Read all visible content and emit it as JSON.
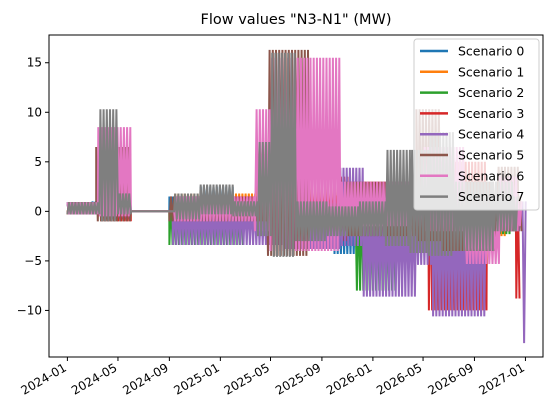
{
  "chart_data": {
    "type": "line",
    "title": "Flow values \"N3-N1\" (MW)",
    "xlabel": "",
    "ylabel": "",
    "x_type": "date",
    "xlim": [
      "2023-11-18",
      "2027-02-12"
    ],
    "ylim": [
      -14.7,
      17.8
    ],
    "x_tick_labels": [
      "2024-01",
      "2024-05",
      "2024-09",
      "2025-01",
      "2025-05",
      "2025-09",
      "2026-01",
      "2026-05",
      "2026-09",
      "2027-01"
    ],
    "x_ticks": [
      "2024-01-01",
      "2024-05-01",
      "2024-09-01",
      "2025-01-01",
      "2025-05-01",
      "2025-09-01",
      "2026-01-01",
      "2026-05-01",
      "2026-09-01",
      "2027-01-01"
    ],
    "y_ticks": [
      -10,
      -5,
      0,
      5,
      10,
      15
    ],
    "y_tick_labels": [
      "−10",
      "−5",
      "0",
      "5",
      "10",
      "15"
    ],
    "grid": false,
    "legend_position": "top-right",
    "series": [
      {
        "name": "Scenario 0",
        "color": "#1f77b4",
        "points": [
          {
            "x": "2024-01-01",
            "lo": -0.3,
            "hi": 0.9
          },
          {
            "x": "2024-03-01",
            "lo": -0.2,
            "hi": 1.0
          },
          {
            "x": "2024-04-01",
            "lo": -0.8,
            "hi": 2.5
          },
          {
            "x": "2024-06-01",
            "lo": 0.0,
            "hi": 0.0
          },
          {
            "x": "2024-09-01",
            "lo": -1.5,
            "hi": 1.5
          },
          {
            "x": "2024-11-15",
            "lo": -0.3,
            "hi": 2.5
          },
          {
            "x": "2025-02-01",
            "lo": -0.5,
            "hi": 1.0
          },
          {
            "x": "2025-04-01",
            "lo": -1.0,
            "hi": 4.0
          },
          {
            "x": "2025-06-01",
            "lo": -3.5,
            "hi": 1.0
          },
          {
            "x": "2025-10-01",
            "lo": -4.3,
            "hi": 1.2
          },
          {
            "x": "2026-01-01",
            "lo": -2.0,
            "hi": 2.0
          },
          {
            "x": "2026-06-01",
            "lo": -4.0,
            "hi": 2.5
          },
          {
            "x": "2026-10-01",
            "lo": -2.0,
            "hi": 1.5
          },
          {
            "x": "2026-12-15",
            "lo": -1.5,
            "hi": 1.0
          }
        ]
      },
      {
        "name": "Scenario 1",
        "color": "#ff7f0e",
        "points": [
          {
            "x": "2024-01-01",
            "lo": -0.3,
            "hi": 0.9
          },
          {
            "x": "2024-03-15",
            "lo": -0.5,
            "hi": 3.0
          },
          {
            "x": "2024-06-01",
            "lo": 0.0,
            "hi": 0.0
          },
          {
            "x": "2024-09-15",
            "lo": -1.0,
            "hi": 1.8
          },
          {
            "x": "2025-04-01",
            "lo": -0.8,
            "hi": 5.8
          },
          {
            "x": "2025-06-15",
            "lo": -3.0,
            "hi": 1.2
          },
          {
            "x": "2025-10-01",
            "lo": -2.0,
            "hi": 1.6
          },
          {
            "x": "2026-02-01",
            "lo": -2.0,
            "hi": 1.5
          },
          {
            "x": "2026-08-01",
            "lo": -2.5,
            "hi": 1.0
          },
          {
            "x": "2026-11-15",
            "lo": -1.0,
            "hi": 2.0
          }
        ]
      },
      {
        "name": "Scenario 2",
        "color": "#2ca02c",
        "points": [
          {
            "x": "2024-01-01",
            "lo": -0.3,
            "hi": 0.9
          },
          {
            "x": "2024-06-01",
            "lo": 0.0,
            "hi": 0.0
          },
          {
            "x": "2024-09-01",
            "lo": -3.4,
            "hi": 1.2
          },
          {
            "x": "2025-03-01",
            "lo": -1.0,
            "hi": 1.0
          },
          {
            "x": "2025-11-20",
            "lo": -8.0,
            "hi": 1.5
          },
          {
            "x": "2026-03-01",
            "lo": -2.5,
            "hi": 1.5
          },
          {
            "x": "2026-08-01",
            "lo": -2.3,
            "hi": 1.0
          },
          {
            "x": "2026-12-01",
            "lo": -1.5,
            "hi": 2.0
          }
        ]
      },
      {
        "name": "Scenario 3",
        "color": "#d62728",
        "points": [
          {
            "x": "2024-01-01",
            "lo": -0.3,
            "hi": 0.9
          },
          {
            "x": "2024-03-20",
            "lo": -1.0,
            "hi": 5.0
          },
          {
            "x": "2024-06-01",
            "lo": 0.0,
            "hi": 0.0
          },
          {
            "x": "2024-09-15",
            "lo": -1.5,
            "hi": 1.5
          },
          {
            "x": "2025-05-01",
            "lo": -3.0,
            "hi": 3.5
          },
          {
            "x": "2025-11-01",
            "lo": -2.0,
            "hi": 3.0
          },
          {
            "x": "2026-04-01",
            "lo": -2.5,
            "hi": 3.0
          },
          {
            "x": "2026-05-15",
            "lo": -10.0,
            "hi": 5.0
          },
          {
            "x": "2026-10-01",
            "lo": -2.0,
            "hi": 1.5
          },
          {
            "x": "2026-12-10",
            "lo": -8.8,
            "hi": 1.5
          }
        ]
      },
      {
        "name": "Scenario 4",
        "color": "#9467bd",
        "points": [
          {
            "x": "2024-01-01",
            "lo": -0.3,
            "hi": 0.9
          },
          {
            "x": "2024-04-01",
            "lo": -0.7,
            "hi": 1.5
          },
          {
            "x": "2024-06-01",
            "lo": 0.0,
            "hi": 0.0
          },
          {
            "x": "2024-09-10",
            "lo": -3.4,
            "hi": 1.0
          },
          {
            "x": "2025-06-01",
            "lo": -3.8,
            "hi": 1.0
          },
          {
            "x": "2025-10-15",
            "lo": -3.5,
            "hi": 4.4
          },
          {
            "x": "2025-12-10",
            "lo": -8.6,
            "hi": 1.0
          },
          {
            "x": "2026-04-15",
            "lo": -5.4,
            "hi": 1.5
          },
          {
            "x": "2026-05-25",
            "lo": -10.6,
            "hi": 2.0
          },
          {
            "x": "2026-10-01",
            "lo": -2.0,
            "hi": 1.0
          },
          {
            "x": "2026-12-25",
            "lo": -13.3,
            "hi": 1.0
          }
        ]
      },
      {
        "name": "Scenario 5",
        "color": "#8c564b",
        "points": [
          {
            "x": "2024-01-01",
            "lo": -0.3,
            "hi": 0.9
          },
          {
            "x": "2024-03-10",
            "lo": -1.0,
            "hi": 6.5
          },
          {
            "x": "2024-06-01",
            "lo": 0.0,
            "hi": 0.0
          },
          {
            "x": "2024-09-01",
            "lo": -1.0,
            "hi": 1.5
          },
          {
            "x": "2025-04-25",
            "lo": -4.5,
            "hi": 16.3
          },
          {
            "x": "2025-08-01",
            "lo": -2.0,
            "hi": 0.8
          },
          {
            "x": "2025-11-01",
            "lo": -2.5,
            "hi": 3.0
          },
          {
            "x": "2026-04-15",
            "lo": -3.0,
            "hi": 10.3
          },
          {
            "x": "2026-06-15",
            "lo": -4.0,
            "hi": 3.0
          },
          {
            "x": "2026-10-25",
            "lo": -2.0,
            "hi": 4.5
          },
          {
            "x": "2026-12-15",
            "lo": -2.0,
            "hi": 1.5
          }
        ]
      },
      {
        "name": "Scenario 6",
        "color": "#e377c2",
        "points": [
          {
            "x": "2024-01-01",
            "lo": -0.3,
            "hi": 0.9
          },
          {
            "x": "2024-03-15",
            "lo": -0.5,
            "hi": 8.5
          },
          {
            "x": "2024-06-01",
            "lo": 0.0,
            "hi": 0.0
          },
          {
            "x": "2024-09-15",
            "lo": -1.0,
            "hi": 1.5
          },
          {
            "x": "2025-03-25",
            "lo": -2.0,
            "hi": 10.3
          },
          {
            "x": "2025-05-01",
            "lo": -4.0,
            "hi": 15.5
          },
          {
            "x": "2025-10-15",
            "lo": -1.5,
            "hi": 3.0
          },
          {
            "x": "2026-05-01",
            "lo": -2.0,
            "hi": 6.5
          },
          {
            "x": "2026-08-10",
            "lo": -5.3,
            "hi": -1.0
          },
          {
            "x": "2026-11-01",
            "lo": -2.0,
            "hi": 3.5
          },
          {
            "x": "2026-12-15",
            "lo": -1.5,
            "hi": 1.0
          }
        ]
      },
      {
        "name": "Scenario 7",
        "color": "#7f7f7f",
        "points": [
          {
            "x": "2024-01-01",
            "lo": -0.3,
            "hi": 0.9
          },
          {
            "x": "2024-03-20",
            "lo": -1.0,
            "hi": 10.3
          },
          {
            "x": "2024-05-01",
            "lo": -0.3,
            "hi": 1.8
          },
          {
            "x": "2024-06-01",
            "lo": 0.0,
            "hi": 0.0
          },
          {
            "x": "2024-09-15",
            "lo": -0.8,
            "hi": 1.8
          },
          {
            "x": "2024-11-15",
            "lo": -0.3,
            "hi": 2.7
          },
          {
            "x": "2025-02-01",
            "lo": -0.5,
            "hi": 1.0
          },
          {
            "x": "2025-04-01",
            "lo": -2.5,
            "hi": 7.0
          },
          {
            "x": "2025-05-05",
            "lo": -4.6,
            "hi": 16.0
          },
          {
            "x": "2025-07-01",
            "lo": -3.0,
            "hi": 1.0
          },
          {
            "x": "2025-09-15",
            "lo": -2.5,
            "hi": 0.5
          },
          {
            "x": "2025-12-01",
            "lo": -2.5,
            "hi": 1.0
          },
          {
            "x": "2026-02-01",
            "lo": -3.5,
            "hi": 6.2
          },
          {
            "x": "2026-04-01",
            "lo": -4.2,
            "hi": 6.2
          },
          {
            "x": "2026-05-15",
            "lo": -4.5,
            "hi": 8.0
          },
          {
            "x": "2026-07-15",
            "lo": -4.0,
            "hi": 3.0
          },
          {
            "x": "2026-10-15",
            "lo": -2.0,
            "hi": 3.0
          },
          {
            "x": "2026-12-05",
            "lo": -2.0,
            "hi": 1.5
          }
        ]
      }
    ]
  }
}
